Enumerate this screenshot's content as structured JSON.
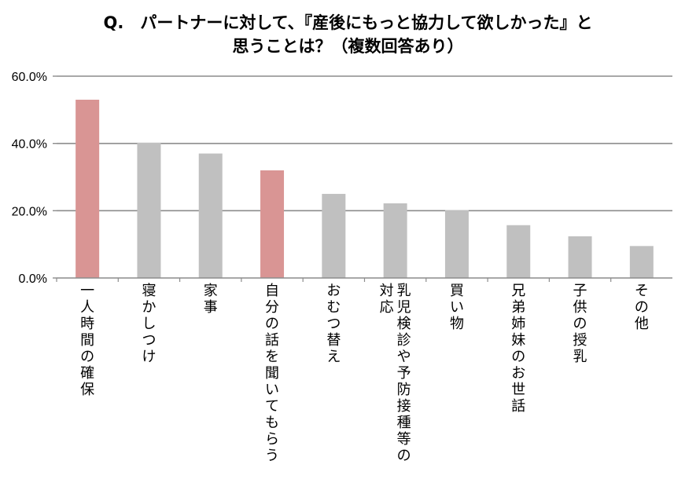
{
  "title": {
    "line1": "Q.　パートナーに対して、『産後にもっと協力して欲しかった』と",
    "line2": "思うことは？（複数回答あり）"
  },
  "chart_data": {
    "type": "bar",
    "title": "Q.　パートナーに対して、『産後にもっと協力して欲しかった』と 思うことは？（複数回答あり）",
    "xlabel": "",
    "ylabel": "",
    "ylim": [
      0,
      60
    ],
    "yticks": [
      "0.0%",
      "20.0%",
      "40.0%",
      "60.0%"
    ],
    "grid": true,
    "categories": [
      {
        "lines": [
          "一人時間の確保"
        ]
      },
      {
        "lines": [
          "寝かしつけ"
        ]
      },
      {
        "lines": [
          "家事"
        ]
      },
      {
        "lines": [
          "自分の話を聞いてもらう"
        ]
      },
      {
        "lines": [
          "おむつ替え"
        ]
      },
      {
        "lines": [
          "乳児検診や予防接種等の",
          "対応"
        ]
      },
      {
        "lines": [
          "買い物"
        ]
      },
      {
        "lines": [
          "兄弟姉妹のお世話"
        ]
      },
      {
        "lines": [
          "子供の授乳"
        ]
      },
      {
        "lines": [
          "その他"
        ]
      }
    ],
    "values": [
      53,
      40.2,
      37,
      32,
      25,
      22.2,
      20.2,
      15.7,
      12.4,
      9.5
    ],
    "colors": [
      "#d99594",
      "#c0c0c0",
      "#c0c0c0",
      "#d99594",
      "#c0c0c0",
      "#c0c0c0",
      "#c0c0c0",
      "#c0c0c0",
      "#c0c0c0",
      "#c0c0c0"
    ],
    "gridColor": "#8c8c8c"
  }
}
